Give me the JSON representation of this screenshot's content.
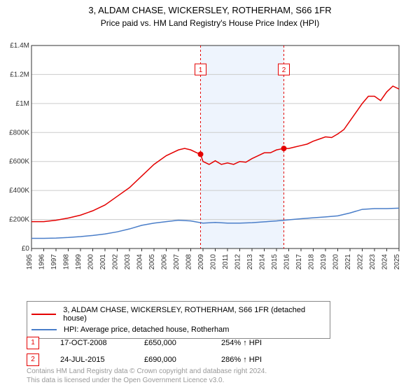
{
  "title_line1": "3, ALDAM CHASE, WICKERSLEY, ROTHERHAM, S66 1FR",
  "title_line2": "Price paid vs. HM Land Registry's House Price Index (HPI)",
  "chart": {
    "type": "line",
    "background_color": "#ffffff",
    "grid_color": "#cccccc",
    "border_color": "#333333",
    "axis_font_size": 10,
    "ylim": [
      0,
      1400000
    ],
    "ytick_step": 200000,
    "ytick_labels": [
      "£0",
      "£200K",
      "£400K",
      "£600K",
      "£800K",
      "£1M",
      "£1.2M",
      "£1.4M"
    ],
    "x_years": [
      1995,
      1996,
      1997,
      1998,
      1999,
      2000,
      2001,
      2002,
      2003,
      2004,
      2005,
      2006,
      2007,
      2008,
      2009,
      2010,
      2011,
      2012,
      2013,
      2014,
      2015,
      2016,
      2017,
      2018,
      2019,
      2020,
      2021,
      2022,
      2023,
      2024,
      2025
    ],
    "shaded_band": {
      "x_from": 2008.8,
      "x_to": 2015.6,
      "color": "#eef4fd"
    },
    "series_property": {
      "label": "3, ALDAM CHASE, WICKERSLEY, ROTHERHAM, S66 1FR (detached house)",
      "color": "#e40000",
      "width": 1.5,
      "data": [
        [
          1995,
          185000
        ],
        [
          1996,
          185000
        ],
        [
          1997,
          195000
        ],
        [
          1998,
          210000
        ],
        [
          1999,
          230000
        ],
        [
          2000,
          260000
        ],
        [
          2001,
          300000
        ],
        [
          2002,
          360000
        ],
        [
          2003,
          420000
        ],
        [
          2004,
          500000
        ],
        [
          2005,
          580000
        ],
        [
          2006,
          640000
        ],
        [
          2007,
          680000
        ],
        [
          2007.5,
          690000
        ],
        [
          2008,
          680000
        ],
        [
          2008.5,
          660000
        ],
        [
          2008.8,
          650000
        ],
        [
          2009,
          600000
        ],
        [
          2009.5,
          580000
        ],
        [
          2010,
          605000
        ],
        [
          2010.5,
          580000
        ],
        [
          2011,
          590000
        ],
        [
          2011.5,
          580000
        ],
        [
          2012,
          600000
        ],
        [
          2012.5,
          595000
        ],
        [
          2013,
          620000
        ],
        [
          2013.5,
          640000
        ],
        [
          2014,
          660000
        ],
        [
          2014.5,
          660000
        ],
        [
          2015,
          680000
        ],
        [
          2015.6,
          690000
        ],
        [
          2016,
          690000
        ],
        [
          2016.5,
          700000
        ],
        [
          2017,
          710000
        ],
        [
          2017.5,
          720000
        ],
        [
          2018,
          740000
        ],
        [
          2018.5,
          755000
        ],
        [
          2019,
          770000
        ],
        [
          2019.5,
          765000
        ],
        [
          2020,
          790000
        ],
        [
          2020.5,
          820000
        ],
        [
          2021,
          880000
        ],
        [
          2021.5,
          940000
        ],
        [
          2022,
          1000000
        ],
        [
          2022.5,
          1050000
        ],
        [
          2023,
          1050000
        ],
        [
          2023.5,
          1020000
        ],
        [
          2024,
          1080000
        ],
        [
          2024.5,
          1120000
        ],
        [
          2025,
          1100000
        ]
      ]
    },
    "series_hpi": {
      "label": "HPI: Average price, detached house, Rotherham",
      "color": "#4a7ec9",
      "width": 1.5,
      "data": [
        [
          1995,
          70000
        ],
        [
          1996,
          70000
        ],
        [
          1997,
          72000
        ],
        [
          1998,
          76000
        ],
        [
          1999,
          82000
        ],
        [
          2000,
          90000
        ],
        [
          2001,
          100000
        ],
        [
          2002,
          115000
        ],
        [
          2003,
          135000
        ],
        [
          2004,
          160000
        ],
        [
          2005,
          175000
        ],
        [
          2006,
          185000
        ],
        [
          2007,
          195000
        ],
        [
          2008,
          190000
        ],
        [
          2009,
          175000
        ],
        [
          2010,
          180000
        ],
        [
          2011,
          175000
        ],
        [
          2012,
          175000
        ],
        [
          2013,
          178000
        ],
        [
          2014,
          184000
        ],
        [
          2015,
          190000
        ],
        [
          2016,
          198000
        ],
        [
          2017,
          205000
        ],
        [
          2018,
          212000
        ],
        [
          2019,
          218000
        ],
        [
          2020,
          225000
        ],
        [
          2021,
          245000
        ],
        [
          2022,
          270000
        ],
        [
          2023,
          275000
        ],
        [
          2024,
          275000
        ],
        [
          2025,
          278000
        ]
      ]
    },
    "sale_markers": [
      {
        "n": "1",
        "x": 2008.8,
        "y": 650000,
        "box_y_value": 1230000
      },
      {
        "n": "2",
        "x": 2015.6,
        "y": 690000,
        "box_y_value": 1230000
      }
    ],
    "vline_color": "#e40000",
    "vline_dash": "3,3",
    "marker_dot_radius": 4
  },
  "legend": {
    "items": [
      {
        "color": "#e40000",
        "text": "3, ALDAM CHASE, WICKERSLEY, ROTHERHAM, S66 1FR (detached house)"
      },
      {
        "color": "#4a7ec9",
        "text": "HPI: Average price, detached house, Rotherham"
      }
    ]
  },
  "sales": [
    {
      "n": "1",
      "date": "17-OCT-2008",
      "price": "£650,000",
      "hpi": "254% ↑ HPI"
    },
    {
      "n": "2",
      "date": "24-JUL-2015",
      "price": "£690,000",
      "hpi": "286% ↑ HPI"
    }
  ],
  "footer_line1": "Contains HM Land Registry data © Crown copyright and database right 2024.",
  "footer_line2": "This data is licensed under the Open Government Licence v3.0."
}
